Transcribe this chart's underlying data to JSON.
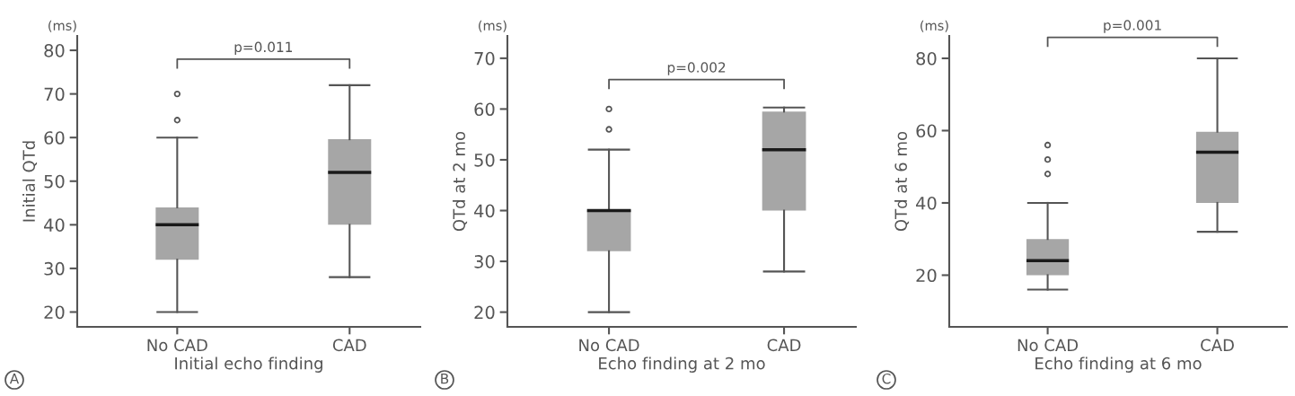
{
  "chart_data": [
    {
      "type": "box",
      "xlabel": "Initial echo finding",
      "ylabel": "Initial QTd",
      "categories": [
        "No CAD",
        "CAD"
      ],
      "color": "#a6a6a6",
      "ylim": [
        16.6,
        83.3
      ],
      "yticks": [
        20,
        30,
        40,
        50,
        60,
        70,
        80
      ],
      "grid": false,
      "legend": false,
      "boxes": [
        {
          "low": 20,
          "q1": 32,
          "median": 40,
          "q3": 44,
          "high": 60,
          "outliers": [
            64,
            70
          ]
        },
        {
          "low": 28,
          "q1": 40,
          "median": 52,
          "q3": 59.6,
          "high": 72
        }
      ],
      "annotations": [
        "(ms)",
        "p=0.011",
        "A"
      ]
    },
    {
      "type": "box",
      "xlabel": "Echo finding at 2 mo",
      "ylabel": "QTd at 2 mo",
      "categories": [
        "No CAD",
        "CAD"
      ],
      "color": "#a6a6a6",
      "ylim": [
        17.1,
        74.4
      ],
      "yticks": [
        20,
        30,
        40,
        50,
        60,
        70
      ],
      "grid": false,
      "legend": false,
      "boxes": [
        {
          "low": 20,
          "q1": 32,
          "median": 40,
          "q3": 40.2,
          "high": 52,
          "outliers": [
            56,
            60
          ]
        },
        {
          "low": 28,
          "q1": 40,
          "median": 52,
          "q3": 59.5,
          "high": 60.3
        }
      ],
      "annotations": [
        "(ms)",
        "p=0.002",
        "B"
      ]
    },
    {
      "type": "box",
      "xlabel": "Echo finding at 6 mo",
      "ylabel": "QTd at 6 mo",
      "categories": [
        "No CAD",
        "CAD"
      ],
      "color": "#a6a6a6",
      "ylim": [
        5.7,
        86.2
      ],
      "yticks": [
        20,
        40,
        60,
        80
      ],
      "grid": false,
      "legend": false,
      "boxes": [
        {
          "low": 16,
          "q1": 20,
          "median": 24,
          "q3": 30,
          "high": 40,
          "outliers": [
            48,
            52,
            56
          ]
        },
        {
          "low": 32,
          "q1": 40,
          "median": 54,
          "q3": 59.7,
          "high": 80
        }
      ],
      "annotations": [
        "(ms)",
        "p=0.001",
        "C"
      ]
    }
  ]
}
